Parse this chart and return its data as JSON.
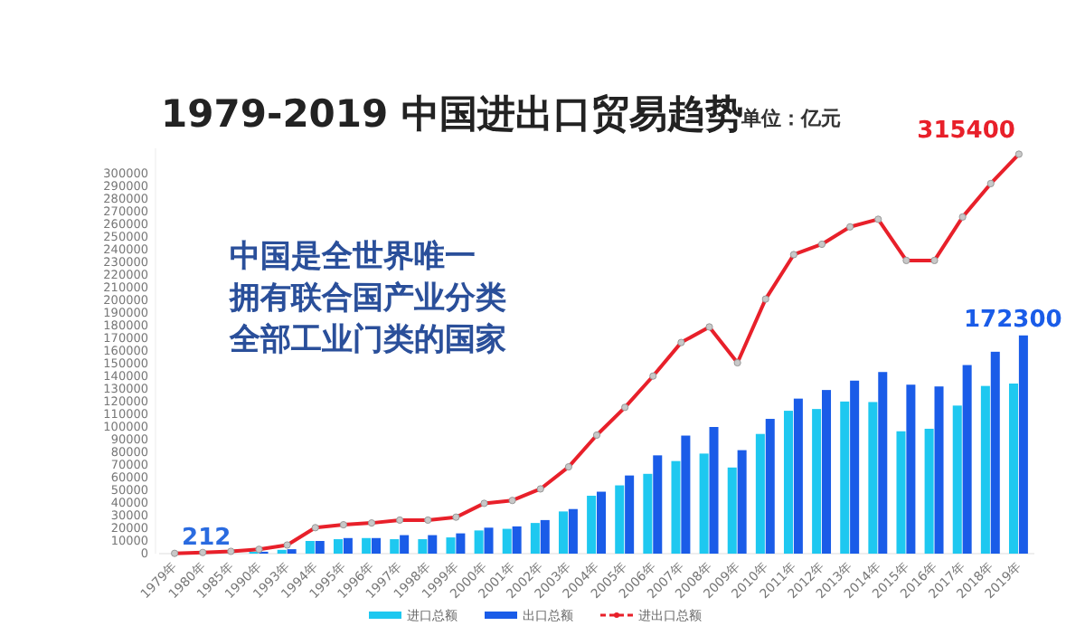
{
  "chart_data": {
    "type": "bar",
    "title": "1979-2019 中国进出口贸易趋势",
    "subtitle": "单位：亿元",
    "categories": [
      "1979年",
      "1980年",
      "1985年",
      "1990年",
      "1993年",
      "1994年",
      "1995年",
      "1996年",
      "1997年",
      "1998年",
      "1999年",
      "2000年",
      "2001年",
      "2002年",
      "2003年",
      "2004年",
      "2005年",
      "2006年",
      "2007年",
      "2008年",
      "2009年",
      "2010年",
      "2011年",
      "2012年",
      "2013年",
      "2014年",
      "2015年",
      "2016年",
      "2017年",
      "2018年",
      "2019年"
    ],
    "series": [
      {
        "name": "进口总额",
        "color": "#1ec8f0",
        "values": [
          null,
          null,
          null,
          1500,
          3000,
          10000,
          11400,
          12300,
          11400,
          11400,
          12800,
          18300,
          19600,
          24200,
          33300,
          45700,
          53900,
          63000,
          73100,
          79000,
          68000,
          94500,
          112800,
          114200,
          120100,
          119700,
          96600,
          98600,
          116900,
          132400,
          134300
        ]
      },
      {
        "name": "出口总额",
        "color": "#1a5ce8",
        "values": [
          null,
          null,
          null,
          1500,
          3500,
          10000,
          12300,
          12300,
          14600,
          14600,
          16000,
          20500,
          21500,
          26500,
          35200,
          48900,
          61700,
          77600,
          93200,
          100000,
          81700,
          106400,
          122400,
          129200,
          136600,
          143400,
          133400,
          132000,
          148900,
          159400,
          172300
        ],
        "value_labels": [
          null,
          null,
          null,
          null,
          null,
          null,
          null,
          null,
          null,
          null,
          null,
          null,
          null,
          null,
          null,
          null,
          null,
          null,
          null,
          null,
          null,
          null,
          null,
          null,
          null,
          null,
          null,
          null,
          null,
          null,
          "172300"
        ]
      },
      {
        "name": "进出口总额",
        "type": "line",
        "color": "#e8202a",
        "marker": "circle",
        "values": [
          212,
          900,
          1800,
          3400,
          6800,
          20500,
          22800,
          24200,
          26500,
          26500,
          28800,
          39700,
          42000,
          51100,
          68500,
          93600,
          115500,
          140200,
          166700,
          179000,
          150700,
          201000,
          236100,
          244300,
          258000,
          264000,
          231500,
          231500,
          265800,
          292200,
          315400
        ],
        "value_labels": [
          "212",
          null,
          null,
          null,
          null,
          null,
          null,
          null,
          null,
          null,
          null,
          null,
          null,
          null,
          null,
          null,
          null,
          null,
          null,
          null,
          null,
          null,
          null,
          null,
          null,
          null,
          null,
          null,
          null,
          null,
          "315400"
        ]
      }
    ],
    "ylim": [
      0,
      320000
    ],
    "yticks": [
      0,
      10000,
      20000,
      30000,
      40000,
      50000,
      60000,
      70000,
      80000,
      90000,
      100000,
      110000,
      120000,
      130000,
      140000,
      150000,
      160000,
      170000,
      180000,
      190000,
      200000,
      210000,
      220000,
      230000,
      240000,
      250000,
      260000,
      270000,
      280000,
      290000,
      300000
    ],
    "grid": false,
    "legend": "bottom",
    "annotations": [
      "中国是全世界唯一",
      "拥有联合国产业分类",
      "全部工业门类的国家"
    ]
  }
}
